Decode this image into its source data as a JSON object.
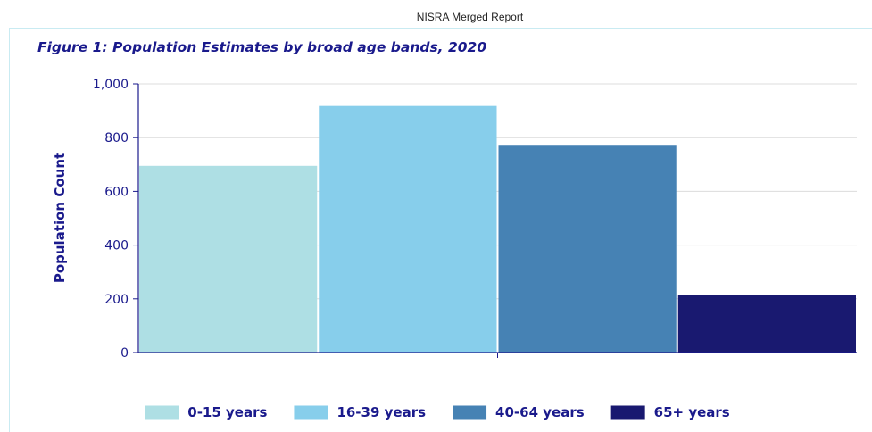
{
  "header": {
    "report_name": "NISRA Merged Report"
  },
  "chart_data": {
    "type": "bar",
    "title": "Figure 1: Population Estimates by broad age bands, 2020",
    "ylabel": "Population Count",
    "xlabel": "",
    "ylim": [
      0,
      1000
    ],
    "yticks": [
      0,
      200,
      400,
      600,
      800,
      1000
    ],
    "ytick_labels": [
      "0",
      "200",
      "400",
      "600",
      "800",
      "1,000"
    ],
    "grid": true,
    "legend_position": "bottom",
    "series": [
      {
        "name": "0-15 years",
        "value": 695,
        "color": "#aedfe4"
      },
      {
        "name": "16-39 years",
        "value": 918,
        "color": "#87ceeb"
      },
      {
        "name": "40-64 years",
        "value": 770,
        "color": "#4682b4"
      },
      {
        "name": "65+ years",
        "value": 213,
        "color": "#191970"
      }
    ]
  }
}
